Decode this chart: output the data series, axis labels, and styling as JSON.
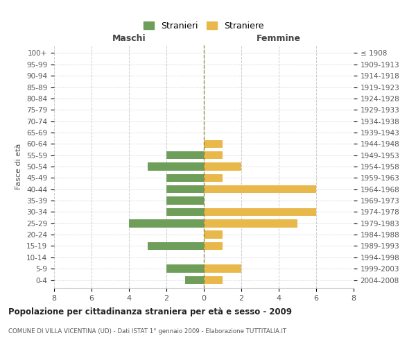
{
  "age_groups": [
    "100+",
    "95-99",
    "90-94",
    "85-89",
    "80-84",
    "75-79",
    "70-74",
    "65-69",
    "60-64",
    "55-59",
    "50-54",
    "45-49",
    "40-44",
    "35-39",
    "30-34",
    "25-29",
    "20-24",
    "15-19",
    "10-14",
    "5-9",
    "0-4"
  ],
  "birth_years": [
    "≤ 1908",
    "1909-1913",
    "1914-1918",
    "1919-1923",
    "1924-1928",
    "1929-1933",
    "1934-1938",
    "1939-1943",
    "1944-1948",
    "1949-1953",
    "1954-1958",
    "1959-1963",
    "1964-1968",
    "1969-1973",
    "1974-1978",
    "1979-1983",
    "1984-1988",
    "1989-1993",
    "1994-1998",
    "1999-2003",
    "2004-2008"
  ],
  "maschi": [
    0,
    0,
    0,
    0,
    0,
    0,
    0,
    0,
    0,
    2,
    3,
    2,
    2,
    2,
    2,
    4,
    0,
    3,
    0,
    2,
    1
  ],
  "femmine": [
    0,
    0,
    0,
    0,
    0,
    0,
    0,
    0,
    1,
    1,
    2,
    1,
    6,
    0,
    6,
    5,
    1,
    1,
    0,
    2,
    1
  ],
  "maschi_color": "#6e9e5a",
  "femmine_color": "#e8b84b",
  "title": "Popolazione per cittadinanza straniera per età e sesso - 2009",
  "subtitle": "COMUNE DI VILLA VICENTINA (UD) - Dati ISTAT 1° gennaio 2009 - Elaborazione TUTTITALIA.IT",
  "legend_maschi": "Stranieri",
  "legend_femmine": "Straniere",
  "xlabel_left": "Maschi",
  "xlabel_right": "Femmine",
  "ylabel_left": "Fasce di età",
  "xlim": 8,
  "background_color": "#ffffff",
  "grid_color": "#cccccc",
  "bar_height": 0.7
}
